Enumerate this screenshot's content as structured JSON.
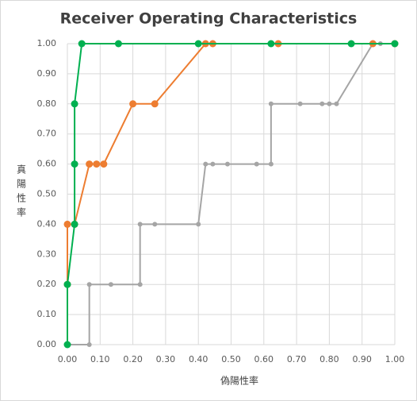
{
  "chart_data": {
    "type": "line",
    "title": "Receiver Operating Characteristics",
    "x_label": "偽陽性率",
    "y_label": "真陽性率",
    "xlim": [
      0,
      1
    ],
    "ylim": [
      0,
      1
    ],
    "xticks": [
      {
        "value": 0,
        "label": "0.00"
      },
      {
        "value": 0.1,
        "label": "0.10"
      },
      {
        "value": 0.2,
        "label": "0.20"
      },
      {
        "value": 0.3,
        "label": "0.30"
      },
      {
        "value": 0.4,
        "label": "0.40"
      },
      {
        "value": 0.5,
        "label": "0.50"
      },
      {
        "value": 0.6,
        "label": "0.60"
      },
      {
        "value": 0.7,
        "label": "0.70"
      },
      {
        "value": 0.8,
        "label": "0.80"
      },
      {
        "value": 0.9,
        "label": "0.90"
      },
      {
        "value": 1,
        "label": "1.00"
      }
    ],
    "yticks": [
      {
        "value": 0,
        "label": "0.00"
      },
      {
        "value": 0.1,
        "label": "0.10"
      },
      {
        "value": 0.2,
        "label": "0.20"
      },
      {
        "value": 0.3,
        "label": "0.30"
      },
      {
        "value": 0.4,
        "label": "0.40"
      },
      {
        "value": 0.5,
        "label": "0.50"
      },
      {
        "value": 0.6,
        "label": "0.60"
      },
      {
        "value": 0.7,
        "label": "0.70"
      },
      {
        "value": 0.8,
        "label": "0.80"
      },
      {
        "value": 0.9,
        "label": "0.90"
      },
      {
        "value": 1,
        "label": "1.00"
      }
    ],
    "grid": true,
    "series": [
      {
        "color": "#a5a5a5",
        "marker_size": 3,
        "x": [
          0,
          0.067,
          0.067,
          0.133,
          0.222,
          0.222,
          0.267,
          0.4,
          0.422,
          0.444,
          0.489,
          0.578,
          0.622,
          0.622,
          0.711,
          0.778,
          0.8,
          0.822,
          0.933,
          0.956,
          1
        ],
        "values": [
          0,
          0,
          0.2,
          0.2,
          0.2,
          0.4,
          0.4,
          0.4,
          0.6,
          0.6,
          0.6,
          0.6,
          0.6,
          0.8,
          0.8,
          0.8,
          0.8,
          0.8,
          1,
          1,
          1
        ]
      },
      {
        "color": "#ed7d31",
        "marker_size": 4.5,
        "x": [
          0,
          0,
          0.022,
          0.067,
          0.089,
          0.111,
          0.2,
          0.267,
          0.422,
          0.444,
          0.644,
          0.933,
          1
        ],
        "values": [
          0.2,
          0.4,
          0.4,
          0.6,
          0.6,
          0.6,
          0.8,
          0.8,
          1,
          1,
          1,
          1,
          1
        ]
      },
      {
        "color": "#00b050",
        "marker_size": 4.5,
        "x": [
          0,
          0,
          0.022,
          0.022,
          0.022,
          0.044,
          0.156,
          0.4,
          0.622,
          0.867,
          1
        ],
        "values": [
          0,
          0.2,
          0.4,
          0.6,
          0.8,
          1,
          1,
          1,
          1,
          1,
          1
        ]
      }
    ]
  }
}
